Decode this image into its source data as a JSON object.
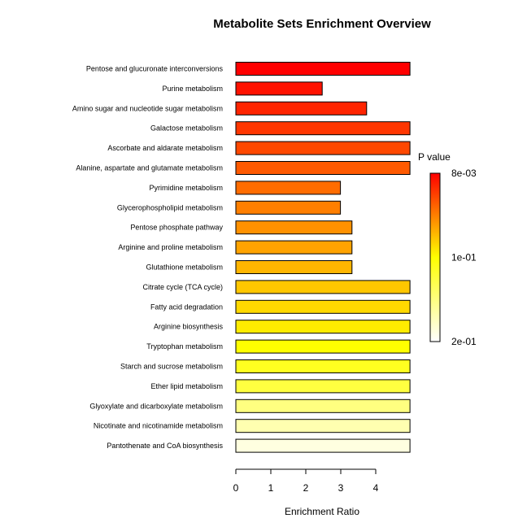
{
  "chart_data": {
    "type": "bar",
    "orientation": "horizontal",
    "title": "Metabolite Sets Enrichment Overview",
    "xlabel": "Enrichment Ratio",
    "ylabel": "",
    "xlim": [
      0,
      5
    ],
    "xticks": [
      0,
      1,
      2,
      3,
      4
    ],
    "grid": false,
    "categories": [
      "Pentose and glucuronate interconversions",
      "Purine metabolism",
      "Amino sugar and nucleotide sugar metabolism",
      "Galactose metabolism",
      "Ascorbate and aldarate metabolism",
      "Alanine, aspartate and glutamate metabolism",
      "Pyrimidine metabolism",
      "Glycerophospholipid metabolism",
      "Pentose phosphate pathway",
      "Arginine and proline metabolism",
      "Glutathione metabolism",
      "Citrate cycle (TCA cycle)",
      "Fatty acid degradation",
      "Arginine biosynthesis",
      "Tryptophan metabolism",
      "Starch and sucrose metabolism",
      "Ether lipid metabolism",
      "Glyoxylate and dicarboxylate metabolism",
      "Nicotinate and nicotinamide metabolism",
      "Pantothenate and CoA biosynthesis"
    ],
    "values": [
      4.98,
      2.47,
      3.74,
      4.98,
      4.98,
      4.98,
      2.99,
      2.99,
      3.32,
      3.32,
      3.32,
      4.98,
      4.98,
      4.98,
      4.98,
      4.98,
      4.98,
      4.98,
      4.98,
      4.98
    ],
    "colors": [
      "#FF0000",
      "#FF1200",
      "#FF2400",
      "#FF3600",
      "#FF4800",
      "#FF5A00",
      "#FF6C00",
      "#FF7F00",
      "#FF9100",
      "#FFA300",
      "#FFB500",
      "#FFC700",
      "#FFD900",
      "#FFEC00",
      "#FFFF00",
      "#FFFF20",
      "#FFFF40",
      "#FFFF80",
      "#FFFFB0",
      "#FFFFE0"
    ],
    "legend": {
      "title": "P value",
      "placement": "right",
      "labels": [
        "8e-03",
        "1e-01",
        "2e-01"
      ],
      "gradient": [
        "#FF0000",
        "#FFFF00",
        "#FFFFFF"
      ]
    }
  }
}
